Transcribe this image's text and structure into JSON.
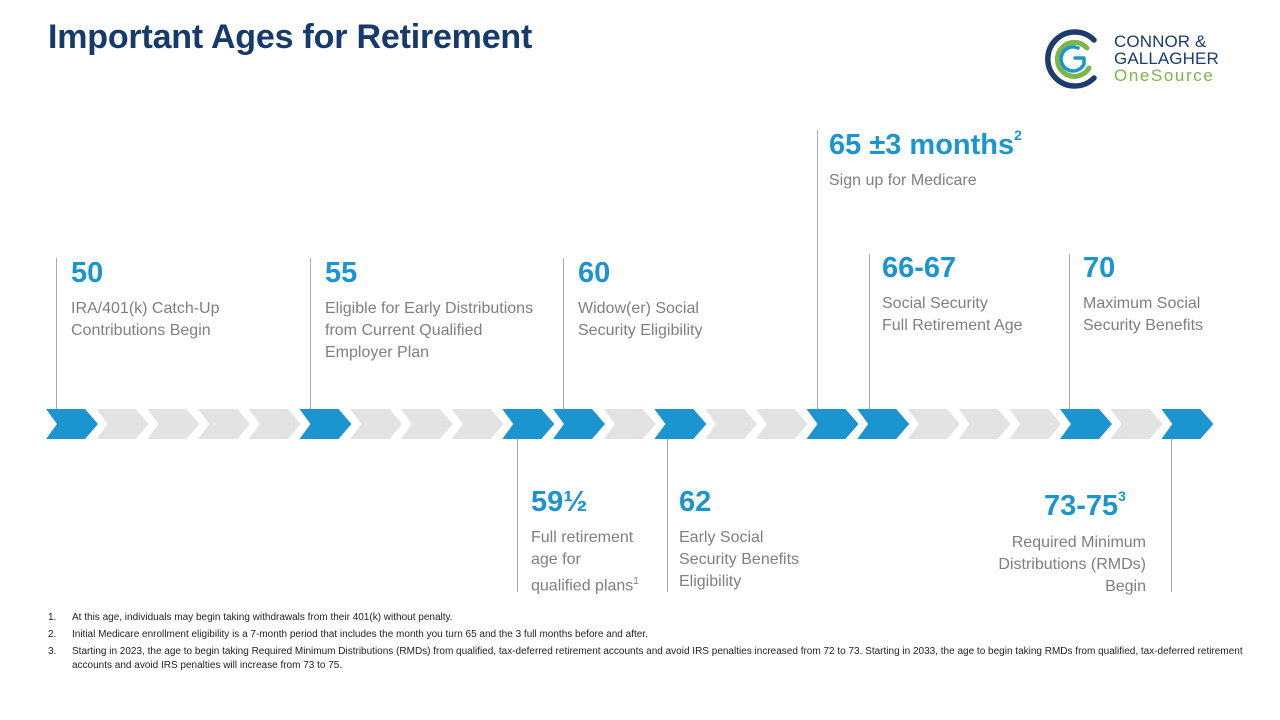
{
  "title": "Important Ages for Retirement",
  "logo": {
    "mark_letters": "CG",
    "line1": "CONNOR &",
    "line2": "GALLAGHER",
    "line3": "OneSource",
    "colors": {
      "navy": "#1e3b6e",
      "green": "#7bb646",
      "blue": "#1a95d0"
    }
  },
  "colors": {
    "accent": "#1a95d0",
    "chevron_inactive": "#e3e3e3",
    "title": "#163a6b",
    "text_gray": "#7f7f7f"
  },
  "timeline": {
    "chevron_count": 23,
    "active_chevrons": [
      0,
      5,
      9,
      10,
      12,
      15,
      16,
      20,
      22
    ]
  },
  "milestones_top": [
    {
      "age": "50",
      "description": [
        "IRA/401(k) Catch-Up",
        "Contributions Begin"
      ]
    },
    {
      "age": "55",
      "description": [
        "Eligible for Early Distributions",
        "from Current Qualified",
        "Employer Plan"
      ]
    },
    {
      "age": "60",
      "description": [
        "Widow(er) Social",
        "Security Eligibility"
      ]
    },
    {
      "age": "65 ±3 months",
      "sup": "2",
      "description": [
        "Sign up for Medicare"
      ]
    },
    {
      "age": "66-67",
      "description": [
        "Social Security",
        "Full Retirement Age"
      ]
    },
    {
      "age": "70",
      "description": [
        "Maximum Social",
        "Security Benefits"
      ]
    }
  ],
  "milestones_bottom": [
    {
      "age": "59½",
      "description": [
        "Full retirement",
        "age for",
        "qualified plans"
      ],
      "desc_sup": "1"
    },
    {
      "age": "62",
      "description": [
        "Early Social",
        "Security Benefits",
        "Eligibility"
      ]
    },
    {
      "age": "73-75",
      "sup": "3",
      "description": [
        "Required Minimum",
        "Distributions (RMDs)",
        "Begin"
      ]
    }
  ],
  "footnotes": [
    {
      "num": "1.",
      "text": "At this age, individuals may begin taking withdrawals from their 401(k) without penalty."
    },
    {
      "num": "2.",
      "text": "Initial Medicare enrollment eligibility is a 7-month period that includes the month you turn 65 and the 3 full months before and after."
    },
    {
      "num": "3.",
      "text": "Starting in 2023, the age to begin taking Required Minimum Distributions (RMDs) from qualified, tax-deferred retirement accounts and avoid IRS penalties increased from 72 to 73. Starting in 2033, the age to begin taking RMDs from qualified, tax-deferred retirement accounts and avoid IRS penalties will increase from 73 to 75."
    }
  ]
}
